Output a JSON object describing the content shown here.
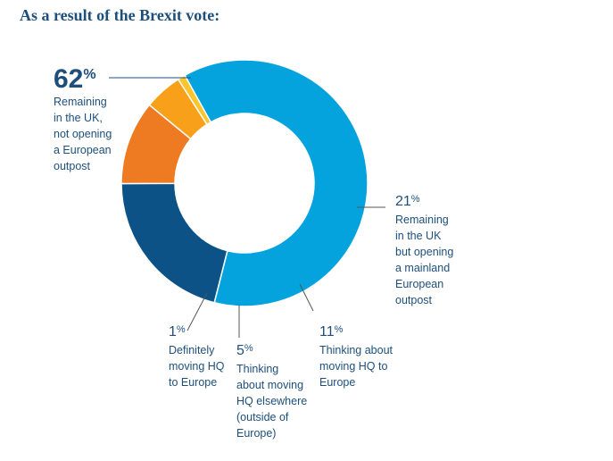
{
  "chart_data": {
    "type": "pie",
    "title": "As a result of the Brexit vote:",
    "slices": [
      {
        "value": 62,
        "value_label": "62",
        "unit": "%",
        "description": [
          "Remaining",
          "in the UK,",
          "not opening",
          "a European",
          "outpost"
        ],
        "color": "#05a3dd"
      },
      {
        "value": 21,
        "value_label": "21",
        "unit": "%",
        "description": [
          "Remaining",
          "in the UK",
          "but opening",
          "a mainland",
          "European",
          "outpost"
        ],
        "color": "#0c5287"
      },
      {
        "value": 11,
        "value_label": "11",
        "unit": "%",
        "description": [
          "Thinking about",
          "moving HQ to",
          "Europe"
        ],
        "color": "#ee7b22"
      },
      {
        "value": 5,
        "value_label": "5",
        "unit": "%",
        "description": [
          "Thinking",
          "about moving",
          "HQ elsewhere",
          "(outside of",
          "Europe)"
        ],
        "color": "#f9a01b"
      },
      {
        "value": 1,
        "value_label": "1",
        "unit": "%",
        "description": [
          "Definitely",
          "moving HQ",
          "to Europe"
        ],
        "color": "#fbc52d"
      }
    ]
  }
}
